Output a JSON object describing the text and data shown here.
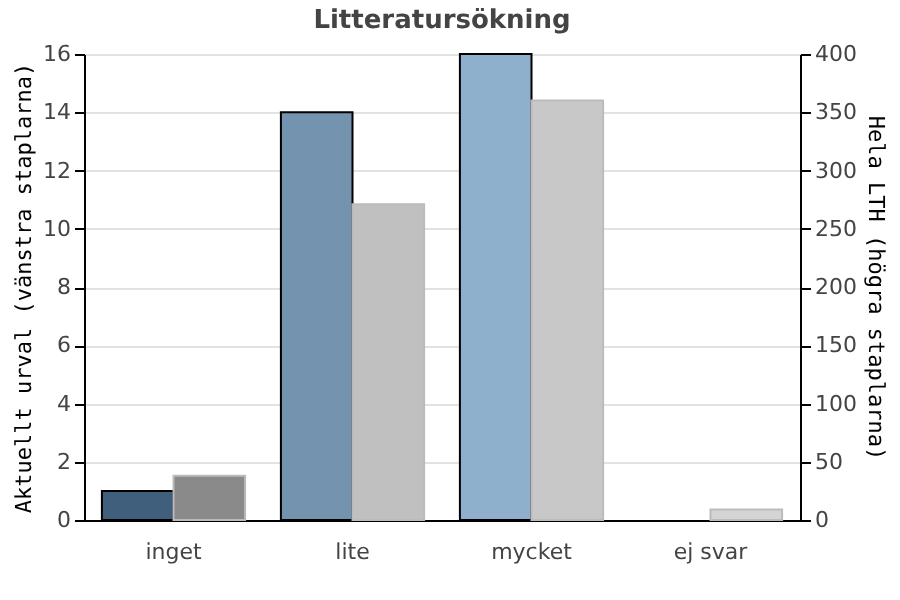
{
  "chart_data": {
    "type": "bar",
    "title": "Litteratursökning",
    "categories": [
      "inget",
      "lite",
      "mycket",
      "ej svar"
    ],
    "ylabel": "Aktuellt urval (vänstra staplarna)",
    "y2label": "Hela LTH (högra staplarna)",
    "ylim": [
      0,
      16
    ],
    "yticks": [
      0,
      2,
      4,
      6,
      8,
      10,
      12,
      14,
      16
    ],
    "y2lim": [
      0,
      400
    ],
    "y2ticks": [
      0,
      50,
      100,
      150,
      200,
      250,
      300,
      350,
      400
    ],
    "grid": "y",
    "series": [
      {
        "colors": [
          "#3f5f7d",
          "#7393ae",
          "#8fb0cc",
          null
        ],
        "values": [
          1,
          14,
          16,
          null
        ]
      },
      {
        "axis": "y2",
        "colors": [
          "#8a8a8a",
          "#c0c0c0",
          "#c8c8c8",
          "#d4d4d4"
        ],
        "values": [
          38,
          271,
          360,
          9
        ]
      }
    ]
  }
}
